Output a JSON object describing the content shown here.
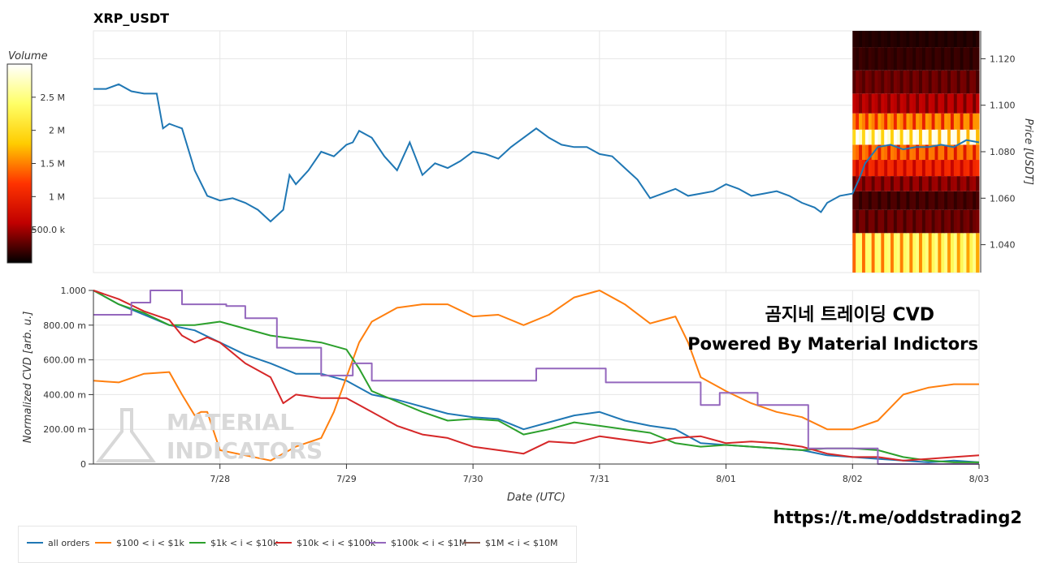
{
  "chart_data": [
    {
      "type": "line",
      "title": "XRP_USDT",
      "ylabel": "Price [USDT]",
      "ylim": [
        1.028,
        1.132
      ],
      "yticks": [
        1.04,
        1.06,
        1.08,
        1.1,
        1.12
      ],
      "ytick_labels": [
        "1.040",
        "1.060",
        "1.080",
        "1.100",
        "1.120"
      ],
      "xlim": [
        -1.0,
        6.0
      ],
      "xticks": [
        0,
        1,
        2,
        3,
        4,
        5,
        6
      ],
      "grid": true,
      "series": [
        {
          "color": "#1f77b4",
          "x": [
            -1.0,
            -0.9,
            -0.8,
            -0.7,
            -0.6,
            -0.5,
            -0.45,
            -0.4,
            -0.35,
            -0.3,
            -0.2,
            -0.1,
            0.0,
            0.1,
            0.2,
            0.3,
            0.4,
            0.5,
            0.55,
            0.6,
            0.7,
            0.8,
            0.9,
            1.0,
            1.05,
            1.1,
            1.2,
            1.3,
            1.4,
            1.5,
            1.6,
            1.7,
            1.8,
            1.9,
            2.0,
            2.1,
            2.2,
            2.3,
            2.4,
            2.5,
            2.6,
            2.7,
            2.8,
            2.9,
            3.0,
            3.1,
            3.2,
            3.3,
            3.4,
            3.5,
            3.6,
            3.7,
            3.8,
            3.9,
            4.0,
            4.1,
            4.2,
            4.3,
            4.4,
            4.5,
            4.6,
            4.7,
            4.75,
            4.8,
            4.9,
            5.0,
            5.05,
            5.1,
            5.2,
            5.3,
            5.4,
            5.5,
            5.6,
            5.7,
            5.8,
            5.9,
            6.0
          ],
          "y": [
            1.107,
            1.107,
            1.109,
            1.106,
            1.105,
            1.105,
            1.09,
            1.092,
            1.091,
            1.09,
            1.072,
            1.061,
            1.059,
            1.06,
            1.058,
            1.055,
            1.05,
            1.055,
            1.07,
            1.066,
            1.072,
            1.08,
            1.078,
            1.083,
            1.084,
            1.089,
            1.086,
            1.078,
            1.072,
            1.084,
            1.07,
            1.075,
            1.073,
            1.076,
            1.08,
            1.079,
            1.077,
            1.082,
            1.086,
            1.09,
            1.086,
            1.083,
            1.082,
            1.082,
            1.079,
            1.078,
            1.073,
            1.068,
            1.06,
            1.062,
            1.064,
            1.061,
            1.062,
            1.063,
            1.066,
            1.064,
            1.061,
            1.062,
            1.063,
            1.061,
            1.058,
            1.056,
            1.054,
            1.058,
            1.061,
            1.062,
            1.068,
            1.075,
            1.082,
            1.083,
            1.081,
            1.082,
            1.082,
            1.083,
            1.082,
            1.085,
            1.084
          ]
        }
      ],
      "heatmap": {
        "x_start": 5.0,
        "x_end": 6.0,
        "price_rows": [
          1.04,
          1.05,
          1.06,
          1.066,
          1.073,
          1.08,
          1.086,
          1.093,
          1.1,
          1.11,
          1.12,
          1.13
        ],
        "row_volumes": [
          2000000,
          300000,
          200000,
          400000,
          900000,
          1200000,
          2400000,
          1300000,
          500000,
          300000,
          150000,
          100000
        ]
      },
      "colorbar": {
        "label": "Volume",
        "ticks": [
          500000,
          1000000,
          1500000,
          2000000,
          2500000
        ],
        "tick_labels": [
          "500.0 k",
          "1 M",
          "1.5 M",
          "2 M",
          "2.5 M"
        ],
        "range": [
          0,
          3000000
        ],
        "colors": [
          "#000000",
          "#c00000",
          "#ff3300",
          "#ffcc00",
          "#ffff66",
          "#ffffff"
        ]
      }
    },
    {
      "type": "line",
      "xlabel": "Date (UTC)",
      "ylabel": "Normalized CVD [arb. u.]",
      "ylim": [
        0,
        1.0
      ],
      "yticks": [
        0,
        0.2,
        0.4,
        0.6,
        0.8,
        1.0
      ],
      "ytick_labels": [
        "0",
        "200.00 m",
        "400.00 m",
        "600.00 m",
        "800.00 m",
        "1.000"
      ],
      "xlim": [
        -1.0,
        6.0
      ],
      "xticks": [
        0,
        1,
        2,
        3,
        4,
        5,
        6
      ],
      "xtick_labels": [
        "7/28",
        "7/29",
        "7/30",
        "7/31",
        "8/01",
        "8/02",
        "8/03"
      ],
      "grid": true,
      "series": [
        {
          "name": "all orders",
          "color": "#1f77b4",
          "x": [
            -1.0,
            -0.8,
            -0.6,
            -0.4,
            -0.2,
            0.0,
            0.2,
            0.4,
            0.6,
            0.8,
            1.0,
            1.2,
            1.4,
            1.6,
            1.8,
            2.0,
            2.2,
            2.4,
            2.6,
            2.8,
            3.0,
            3.2,
            3.4,
            3.6,
            3.8,
            4.0,
            4.2,
            4.4,
            4.6,
            4.8,
            5.0,
            5.2,
            5.4,
            5.6,
            5.8,
            6.0
          ],
          "y": [
            1.0,
            0.92,
            0.86,
            0.8,
            0.77,
            0.7,
            0.63,
            0.58,
            0.52,
            0.52,
            0.48,
            0.4,
            0.37,
            0.33,
            0.29,
            0.27,
            0.26,
            0.2,
            0.24,
            0.28,
            0.3,
            0.25,
            0.22,
            0.2,
            0.12,
            0.11,
            0.1,
            0.09,
            0.08,
            0.05,
            0.04,
            0.03,
            0.02,
            0.01,
            0.02,
            0.01
          ]
        },
        {
          "name": "$100 < i < $1k",
          "color": "#ff7f0e",
          "x": [
            -1.0,
            -0.8,
            -0.6,
            -0.4,
            -0.3,
            -0.2,
            -0.15,
            -0.1,
            0.0,
            0.2,
            0.4,
            0.6,
            0.8,
            0.9,
            1.0,
            1.1,
            1.2,
            1.4,
            1.6,
            1.8,
            2.0,
            2.2,
            2.4,
            2.6,
            2.8,
            3.0,
            3.2,
            3.4,
            3.5,
            3.6,
            3.7,
            3.8,
            4.0,
            4.2,
            4.4,
            4.6,
            4.8,
            5.0,
            5.2,
            5.4,
            5.6,
            5.8,
            6.0
          ],
          "y": [
            0.48,
            0.47,
            0.52,
            0.53,
            0.4,
            0.28,
            0.3,
            0.3,
            0.08,
            0.05,
            0.02,
            0.1,
            0.15,
            0.3,
            0.5,
            0.7,
            0.82,
            0.9,
            0.92,
            0.92,
            0.85,
            0.86,
            0.8,
            0.86,
            0.96,
            1.0,
            0.92,
            0.81,
            0.83,
            0.85,
            0.7,
            0.5,
            0.42,
            0.35,
            0.3,
            0.27,
            0.2,
            0.2,
            0.25,
            0.4,
            0.44,
            0.46,
            0.46
          ]
        },
        {
          "name": "$1k < i < $10k",
          "color": "#2ca02c",
          "x": [
            -1.0,
            -0.8,
            -0.6,
            -0.4,
            -0.2,
            0.0,
            0.2,
            0.4,
            0.6,
            0.8,
            1.0,
            1.1,
            1.2,
            1.4,
            1.6,
            1.8,
            2.0,
            2.2,
            2.4,
            2.6,
            2.8,
            3.0,
            3.2,
            3.4,
            3.6,
            3.8,
            4.0,
            4.2,
            4.4,
            4.6,
            4.8,
            5.0,
            5.2,
            5.4,
            5.6,
            5.8,
            6.0
          ],
          "y": [
            1.0,
            0.92,
            0.87,
            0.8,
            0.8,
            0.82,
            0.78,
            0.74,
            0.72,
            0.7,
            0.66,
            0.55,
            0.42,
            0.36,
            0.3,
            0.25,
            0.26,
            0.25,
            0.17,
            0.2,
            0.24,
            0.22,
            0.2,
            0.18,
            0.12,
            0.1,
            0.11,
            0.1,
            0.09,
            0.08,
            0.09,
            0.09,
            0.08,
            0.04,
            0.02,
            0.01,
            0.01
          ]
        },
        {
          "name": "$10k < i < $100k",
          "color": "#d62728",
          "x": [
            -1.0,
            -0.8,
            -0.6,
            -0.4,
            -0.3,
            -0.2,
            -0.1,
            0.0,
            0.2,
            0.4,
            0.5,
            0.6,
            0.8,
            1.0,
            1.2,
            1.4,
            1.6,
            1.8,
            2.0,
            2.2,
            2.4,
            2.6,
            2.8,
            3.0,
            3.2,
            3.4,
            3.6,
            3.8,
            4.0,
            4.2,
            4.4,
            4.6,
            4.8,
            5.0,
            5.2,
            5.4,
            5.6,
            5.8,
            6.0
          ],
          "y": [
            1.0,
            0.95,
            0.88,
            0.83,
            0.74,
            0.7,
            0.73,
            0.7,
            0.58,
            0.5,
            0.35,
            0.4,
            0.38,
            0.38,
            0.3,
            0.22,
            0.17,
            0.15,
            0.1,
            0.08,
            0.06,
            0.13,
            0.12,
            0.16,
            0.14,
            0.12,
            0.15,
            0.16,
            0.12,
            0.13,
            0.12,
            0.1,
            0.06,
            0.04,
            0.04,
            0.02,
            0.03,
            0.04,
            0.05
          ]
        },
        {
          "name": "$100k < i < $1M",
          "color": "#9467bd",
          "x": [
            -1.0,
            -0.7,
            -0.7,
            -0.55,
            -0.55,
            -0.3,
            -0.3,
            0.05,
            0.05,
            0.2,
            0.2,
            0.45,
            0.45,
            0.8,
            0.8,
            1.05,
            1.05,
            1.2,
            1.2,
            2.5,
            2.5,
            3.05,
            3.05,
            3.8,
            3.8,
            3.95,
            3.95,
            4.25,
            4.25,
            4.65,
            4.65,
            5.2,
            5.2,
            5.4,
            5.4,
            6.0
          ],
          "y": [
            0.86,
            0.86,
            0.93,
            0.93,
            1.0,
            1.0,
            0.92,
            0.92,
            0.91,
            0.91,
            0.84,
            0.84,
            0.67,
            0.67,
            0.51,
            0.51,
            0.58,
            0.58,
            0.48,
            0.48,
            0.55,
            0.55,
            0.47,
            0.47,
            0.34,
            0.34,
            0.41,
            0.41,
            0.34,
            0.34,
            0.09,
            0.09,
            0.0,
            0.0,
            0.0,
            0.0
          ]
        },
        {
          "name": "$1M < i < $10M",
          "color": "#8c564b",
          "x": [],
          "y": []
        }
      ]
    }
  ],
  "overlay": {
    "title_ko": "곰지네 트레이딩 CVD",
    "subtitle": "Powered By Material Indictors",
    "link": "https://t.me/oddstrading2",
    "watermark_line1": "MATERIAL",
    "watermark_line2": "INDICATORS"
  }
}
